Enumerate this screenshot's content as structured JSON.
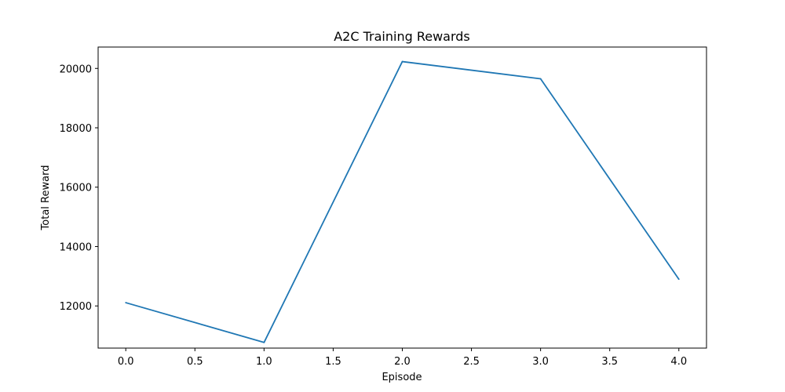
{
  "chart_data": {
    "type": "line",
    "title": "A2C Training Rewards",
    "xlabel": "Episode",
    "ylabel": "Total Reward",
    "xlim": [
      -0.2,
      4.2
    ],
    "ylim": [
      10580,
      20720
    ],
    "x_ticks": [
      0.0,
      0.5,
      1.0,
      1.5,
      2.0,
      2.5,
      3.0,
      3.5,
      4.0
    ],
    "x_tick_labels": [
      "0.0",
      "0.5",
      "1.0",
      "1.5",
      "2.0",
      "2.5",
      "3.0",
      "3.5",
      "4.0"
    ],
    "y_ticks": [
      12000,
      14000,
      16000,
      18000,
      20000
    ],
    "y_tick_labels": [
      "12000",
      "14000",
      "16000",
      "18000",
      "20000"
    ],
    "grid": false,
    "series": [
      {
        "color": "#1f77b4",
        "x": [
          0,
          1,
          2,
          3,
          4
        ],
        "y": [
          12110,
          10770,
          20230,
          19650,
          12900
        ]
      }
    ]
  }
}
